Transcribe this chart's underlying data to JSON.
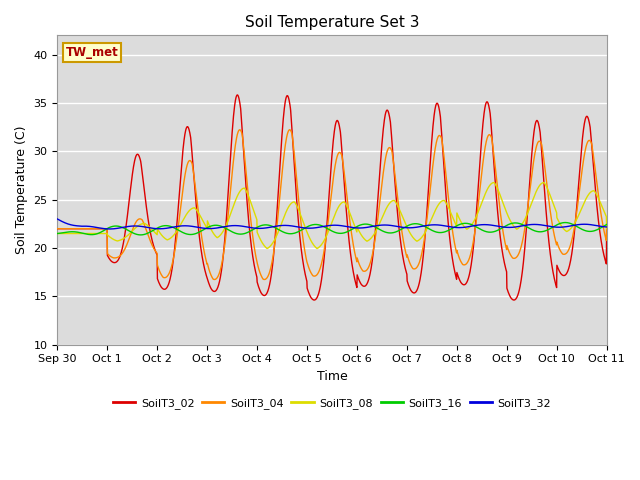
{
  "title": "Soil Temperature Set 3",
  "xlabel": "Time",
  "ylabel": "Soil Temperature (C)",
  "ylim": [
    10,
    42
  ],
  "xlim": [
    0,
    11
  ],
  "annotation": "TW_met",
  "fig_bg": "#ffffff",
  "plot_bg": "#dcdcdc",
  "grid_color": "#ffffff",
  "series_colors": {
    "T02": "#dd0000",
    "T04": "#ff8800",
    "T08": "#dddd00",
    "T16": "#00cc00",
    "T32": "#0000dd"
  },
  "legend_labels": [
    "SoilT3_02",
    "SoilT3_04",
    "SoilT3_08",
    "SoilT3_16",
    "SoilT3_32"
  ],
  "xticks": [
    0,
    1,
    2,
    3,
    4,
    5,
    6,
    7,
    8,
    9,
    10,
    11
  ],
  "xtick_labels": [
    "Sep 30",
    "Oct 1",
    "Oct 2",
    "Oct 3",
    "Oct 4",
    "Oct 5",
    "Oct 6",
    "Oct 7",
    "Oct 8",
    "Oct 9",
    "Oct 10",
    "Oct 11"
  ],
  "yticks": [
    10,
    15,
    20,
    25,
    30,
    35,
    40
  ]
}
